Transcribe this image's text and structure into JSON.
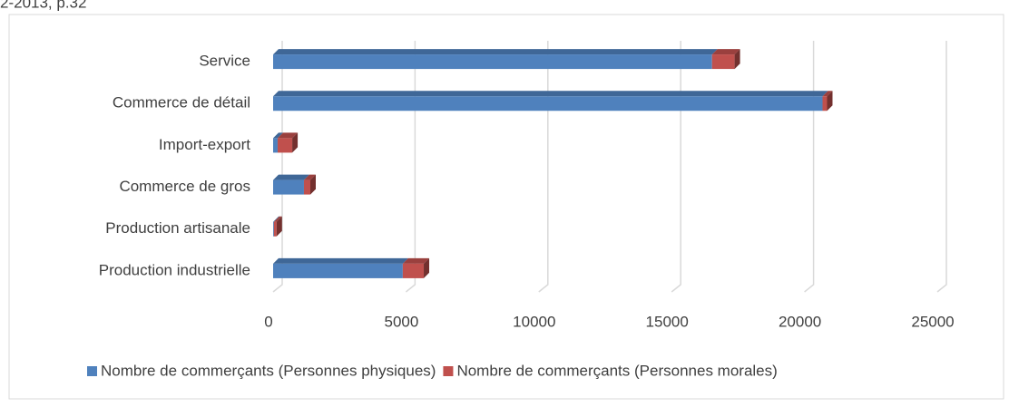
{
  "source": "2-2013, p.32",
  "chart_data": {
    "type": "bar",
    "orientation": "horizontal",
    "stacked": true,
    "categories": [
      "Service",
      "Commerce de détail",
      "Import-export",
      "Commerce de gros",
      "Production artisanale",
      "Production industrielle"
    ],
    "series": [
      {
        "name": "Nombre de commerçants (Personnes physiques)",
        "color": "#4f81bd",
        "values": [
          16520,
          20680,
          170,
          1160,
          30,
          4880
        ]
      },
      {
        "name": "Nombre de commerçants (Personnes morales)",
        "color": "#c0504d",
        "values": [
          850,
          170,
          550,
          240,
          100,
          790
        ]
      }
    ],
    "xlim": [
      0,
      25000
    ],
    "xticks": [
      0,
      5000,
      10000,
      15000,
      20000,
      25000
    ],
    "grid": true,
    "legend": "bottom"
  }
}
